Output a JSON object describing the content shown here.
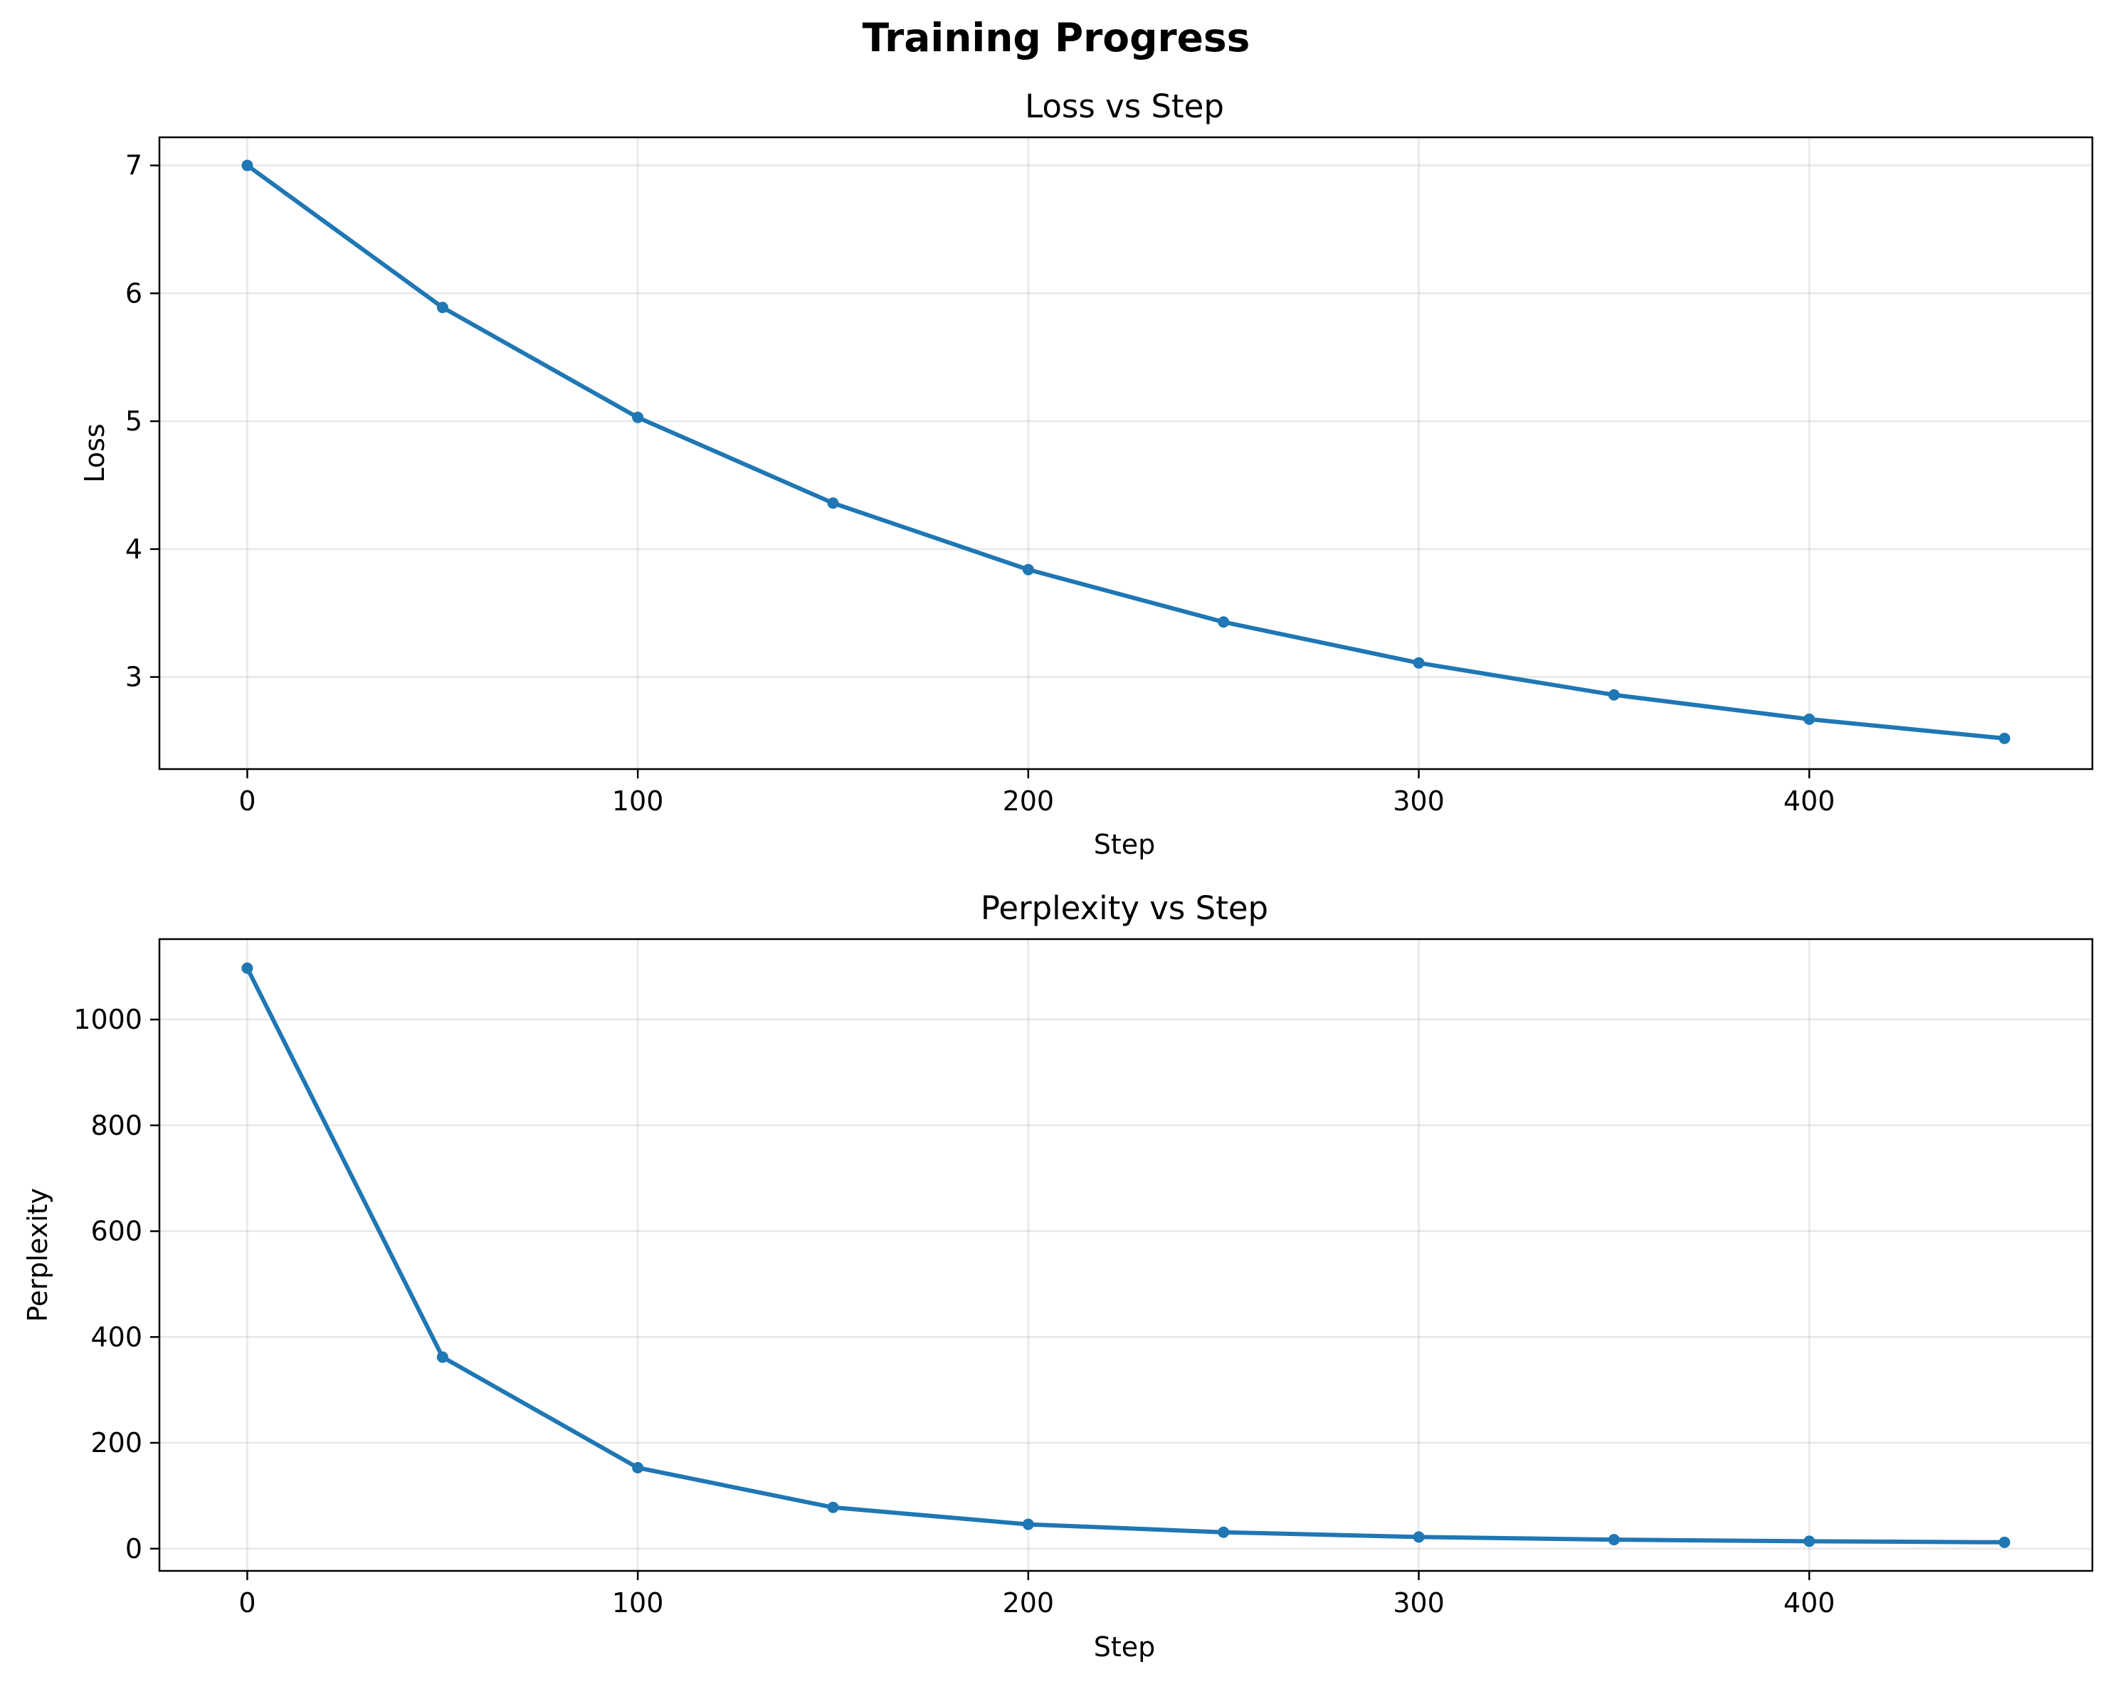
{
  "figure": {
    "suptitle": "Training Progress"
  },
  "colors": {
    "series": "#1f77b4",
    "frame": "#000000",
    "grid": "#b0b0b0",
    "background": "#ffffff"
  },
  "chart_data": [
    {
      "type": "line",
      "title": "Loss vs Step",
      "xlabel": "Step",
      "ylabel": "Loss",
      "grid": true,
      "x": [
        0,
        50,
        100,
        150,
        200,
        250,
        300,
        350,
        400,
        450
      ],
      "series": [
        {
          "values": [
            7.0,
            5.89,
            5.03,
            4.36,
            3.84,
            3.43,
            3.11,
            2.86,
            2.67,
            2.52
          ],
          "color": "#1f77b4",
          "marker": "circle"
        }
      ],
      "xlim": [
        -22.5,
        472.5
      ],
      "ylim": [
        2.28,
        7.22
      ],
      "xticks": [
        0,
        100,
        200,
        300,
        400
      ],
      "xtick_labels": [
        "0",
        "100",
        "200",
        "300",
        "400"
      ],
      "yticks": [
        3,
        4,
        5,
        6,
        7
      ],
      "ytick_labels": [
        "3",
        "4",
        "5",
        "6",
        "7"
      ]
    },
    {
      "type": "line",
      "title": "Perplexity vs Step",
      "xlabel": "Step",
      "ylabel": "Perplexity",
      "grid": true,
      "x": [
        0,
        50,
        100,
        150,
        200,
        250,
        300,
        350,
        400,
        450
      ],
      "series": [
        {
          "values": [
            1097,
            362,
            153,
            78,
            46,
            31,
            22,
            17,
            14,
            12
          ],
          "color": "#1f77b4",
          "marker": "circle"
        }
      ],
      "xlim": [
        -22.5,
        472.5
      ],
      "ylim": [
        -42,
        1152
      ],
      "xticks": [
        0,
        100,
        200,
        300,
        400
      ],
      "xtick_labels": [
        "0",
        "100",
        "200",
        "300",
        "400"
      ],
      "yticks": [
        0,
        200,
        400,
        600,
        800,
        1000
      ],
      "ytick_labels": [
        "0",
        "200",
        "400",
        "600",
        "800",
        "1000"
      ]
    }
  ]
}
